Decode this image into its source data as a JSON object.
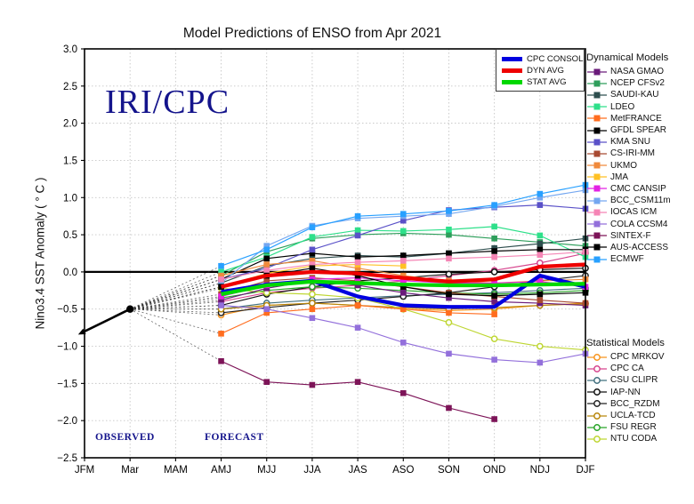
{
  "title": "Model Predictions of ENSO from Apr 2021",
  "watermark": "IRI/CPC",
  "annotations": {
    "observed": "OBSERVED",
    "forecast": "FORECAST"
  },
  "legend_headers": {
    "dynamical": "Dynamical Models",
    "statistical": "Statistical Models"
  },
  "axes": {
    "ylabel": "Nino3.4 SST Anomaly ( ° C )",
    "yticks": [
      "3.0",
      "2.5",
      "2.0",
      "1.5",
      "1.0",
      "0.5",
      "0.0",
      "−0.5",
      "−1.0",
      "−1.5",
      "−2.0",
      "−2.5"
    ],
    "xticks": [
      "JFM",
      "Mar",
      "MAM",
      "AMJ",
      "MJJ",
      "JJA",
      "JAS",
      "ASO",
      "SON",
      "OND",
      "NDJ",
      "DJF"
    ]
  },
  "chart_data": {
    "type": "line",
    "title": "Model Predictions of ENSO from Apr 2021",
    "xlabel": "",
    "ylabel": "Nino3.4 SST Anomaly ( ° C )",
    "ylim": [
      -2.5,
      3.0
    ],
    "ytick_step": 0.5,
    "grid": true,
    "categories": [
      "JFM",
      "Mar",
      "MAM",
      "AMJ",
      "MJJ",
      "JJA",
      "JAS",
      "ASO",
      "SON",
      "OND",
      "NDJ",
      "DJF"
    ],
    "forecast_start_index": 3,
    "observed": {
      "categories": [
        "JFM",
        "Mar"
      ],
      "values": [
        -0.8,
        -0.5
      ],
      "color": "#000000"
    },
    "averages": [
      {
        "name": "CPC CONSOL",
        "color": "#0000e0",
        "values": [
          -0.27,
          -0.17,
          -0.12,
          -0.33,
          -0.45,
          -0.47,
          -0.47,
          -0.05,
          -0.2
        ]
      },
      {
        "name": "DYN AVG",
        "color": "#ee0000",
        "values": [
          -0.2,
          -0.05,
          0.0,
          -0.02,
          -0.08,
          -0.13,
          -0.1,
          0.07,
          0.1
        ]
      },
      {
        "name": "STAT AVG",
        "color": "#00d800",
        "values": [
          -0.3,
          -0.18,
          -0.13,
          -0.15,
          -0.17,
          -0.18,
          -0.18,
          -0.17,
          -0.16
        ]
      }
    ],
    "dynamical_models": [
      {
        "name": "NASA GMAO",
        "color": "#6a1b7a",
        "marker": "square",
        "values": [
          -0.38,
          -0.22,
          -0.12,
          -0.18,
          -0.28,
          -0.35,
          -0.4,
          -0.42,
          -0.45
        ]
      },
      {
        "name": "NCEP CFSv2",
        "color": "#2e9e5b",
        "marker": "square",
        "values": [
          -0.05,
          0.27,
          0.45,
          0.5,
          0.52,
          0.5,
          0.45,
          0.4,
          0.35
        ]
      },
      {
        "name": "SAUDI-KAU",
        "color": "#2f4f4f",
        "marker": "square",
        "values": [
          -0.15,
          0.08,
          0.18,
          0.22,
          0.2,
          0.25,
          0.32,
          0.38,
          0.45
        ]
      },
      {
        "name": "LDEO",
        "color": "#2ee08a",
        "marker": "square",
        "values": [
          0.0,
          0.2,
          0.47,
          0.56,
          0.55,
          0.57,
          0.61,
          0.49,
          0.2
        ]
      },
      {
        "name": "MetFRANCE",
        "color": "#ff6d1f",
        "marker": "square",
        "values": [
          -0.83,
          -0.55,
          -0.5,
          -0.45,
          -0.5,
          -0.55,
          -0.57
        ]
      },
      {
        "name": "GFDL SPEAR",
        "color": "#000000",
        "marker": "square",
        "values": [
          -0.1,
          0.18,
          0.25,
          0.2,
          0.22,
          0.25,
          0.28,
          0.3,
          0.3
        ]
      },
      {
        "name": "KMA SNU",
        "color": "#5a51c8",
        "marker": "square",
        "values": [
          -0.1,
          0.05,
          0.3,
          0.49,
          0.69,
          0.83,
          0.87,
          0.9,
          0.85
        ]
      },
      {
        "name": "CS-IRI-MM",
        "color": "#a84a32",
        "marker": "square",
        "values": [
          -0.3,
          -0.12,
          -0.08,
          -0.12,
          -0.2,
          -0.28,
          -0.33,
          -0.38,
          -0.42
        ]
      },
      {
        "name": "UKMO",
        "color": "#f08a3c",
        "marker": "square",
        "values": [
          -0.05,
          0.1,
          0.15,
          0.05,
          -0.05,
          -0.12,
          -0.15,
          -0.12,
          -0.1
        ]
      },
      {
        "name": "JMA",
        "color": "#ffc125",
        "marker": "square",
        "values": [
          -0.2,
          -0.02,
          0.08,
          0.1,
          0.08
        ]
      },
      {
        "name": "CMC CANSIP",
        "color": "#e322e3",
        "marker": "square",
        "values": [
          -0.33,
          -0.18,
          -0.1,
          -0.08,
          -0.12,
          -0.15,
          -0.15,
          -0.13,
          -0.2
        ]
      },
      {
        "name": "BCC_CSM11m",
        "color": "#74a7f0",
        "marker": "square",
        "values": [
          -0.15,
          0.35,
          0.62,
          0.72,
          0.75,
          0.78,
          0.88,
          1.0,
          1.1
        ]
      },
      {
        "name": "IOCAS ICM",
        "color": "#f585b5",
        "marker": "square",
        "values": [
          -0.1,
          0.02,
          0.1,
          0.13,
          0.15,
          0.18,
          0.2,
          0.23,
          0.27
        ]
      },
      {
        "name": "COLA CCSM4",
        "color": "#9370db",
        "marker": "square",
        "values": [
          -0.45,
          -0.5,
          -0.62,
          -0.75,
          -0.95,
          -1.1,
          -1.18,
          -1.22,
          -1.1
        ]
      },
      {
        "name": "SINTEX-F",
        "color": "#7d1458",
        "marker": "square",
        "values": [
          -1.2,
          -1.48,
          -1.52,
          -1.48,
          -1.63,
          -1.83,
          -1.98
        ]
      },
      {
        "name": "AUS-ACCESS",
        "color": "#000000",
        "marker": "square",
        "values": [
          -0.2,
          -0.05,
          0.05,
          -0.05,
          -0.2,
          -0.3,
          -0.32,
          -0.3,
          -0.28
        ]
      },
      {
        "name": "ECMWF",
        "color": "#28a0ff",
        "marker": "square",
        "values": [
          0.08,
          0.3,
          0.6,
          0.75,
          0.78,
          0.82,
          0.9,
          1.05,
          1.17
        ]
      }
    ],
    "statistical_models": [
      {
        "name": "CPC MRKOV",
        "color": "#f7941d",
        "marker": "circle",
        "values": [
          -0.58,
          -0.45,
          -0.42,
          -0.45,
          -0.5,
          -0.52,
          -0.5,
          -0.45,
          -0.42
        ]
      },
      {
        "name": "CPC CA",
        "color": "#d6458e",
        "marker": "circle",
        "values": [
          -0.4,
          -0.28,
          -0.22,
          -0.18,
          -0.12,
          -0.05,
          0.02,
          0.12,
          0.25
        ]
      },
      {
        "name": "CSU CLIPR",
        "color": "#41707f",
        "marker": "circle",
        "values": [
          -0.5,
          -0.42,
          -0.38,
          -0.35,
          -0.32,
          -0.3,
          -0.28,
          -0.25,
          -0.22
        ]
      },
      {
        "name": "IAP-NN",
        "color": "#111111",
        "marker": "circle",
        "values": [
          -0.45,
          -0.3,
          -0.2,
          -0.12,
          -0.08,
          -0.03,
          0.0,
          0.03,
          0.05
        ]
      },
      {
        "name": "BCC_RZDM",
        "color": "#222222",
        "marker": "circle",
        "values": [
          -0.55,
          -0.48,
          -0.42,
          -0.38,
          -0.33,
          -0.28,
          -0.2,
          -0.12,
          -0.05
        ]
      },
      {
        "name": "UCLA-TCD",
        "color": "#b8860b",
        "marker": "circle",
        "values": [
          -0.5,
          -0.45,
          -0.42,
          -0.45,
          -0.48,
          -0.5,
          -0.48,
          -0.45,
          -0.43
        ]
      },
      {
        "name": "FSU REGR",
        "color": "#28a428",
        "marker": "circle",
        "values": [
          -0.35,
          -0.25,
          -0.2,
          -0.22,
          -0.25,
          -0.28,
          -0.3,
          -0.28,
          -0.25
        ]
      },
      {
        "name": "NTU CODA",
        "color": "#bed632",
        "marker": "circle",
        "values": [
          -0.22,
          -0.28,
          -0.3,
          -0.35,
          -0.5,
          -0.68,
          -0.9,
          -1.0,
          -1.05
        ]
      }
    ]
  }
}
